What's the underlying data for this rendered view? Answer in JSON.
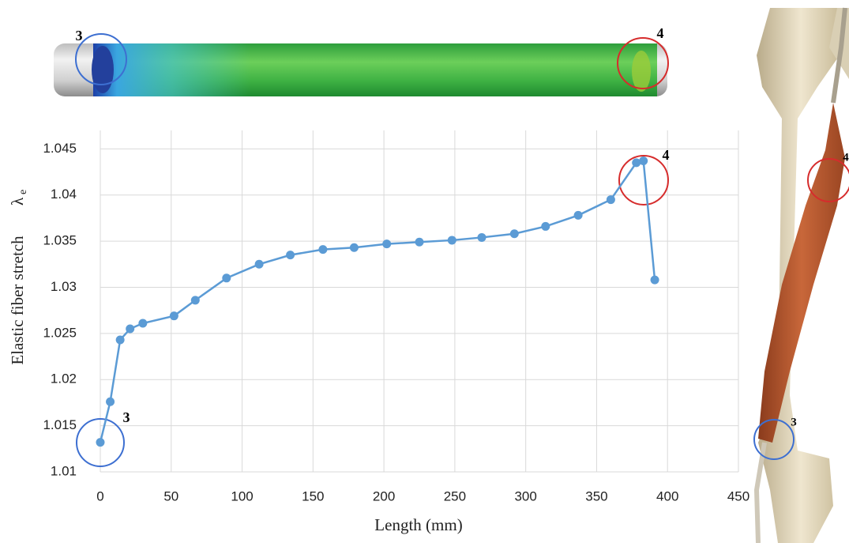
{
  "chart_data": {
    "type": "line",
    "xlabel": "Length (mm)",
    "ylabel": "Elastic fiber stretch",
    "ylabel_symbol": "λ",
    "ylabel_subscript": "e",
    "x": [
      0,
      7,
      14,
      21,
      30,
      52,
      67,
      89,
      112,
      134,
      157,
      179,
      202,
      225,
      248,
      269,
      292,
      314,
      337,
      360,
      378,
      383,
      391
    ],
    "series": [
      {
        "color": "#5b9bd5",
        "values": [
          1.0132,
          1.0176,
          1.0243,
          1.0255,
          1.0261,
          1.0269,
          1.0286,
          1.031,
          1.0325,
          1.0335,
          1.0341,
          1.0343,
          1.0347,
          1.0349,
          1.0351,
          1.0354,
          1.0358,
          1.0366,
          1.0378,
          1.0395,
          1.0435,
          1.0437,
          1.0308
        ]
      }
    ],
    "xlim": [
      0,
      450
    ],
    "xticks": [
      0,
      50,
      100,
      150,
      200,
      250,
      300,
      350,
      400,
      450
    ],
    "ylim": [
      1.01,
      1.047
    ],
    "yticks": [
      1.01,
      1.015,
      1.02,
      1.025,
      1.03,
      1.035,
      1.04,
      1.045
    ],
    "grid": true,
    "annotations": [
      "3",
      "4"
    ]
  },
  "tube_labels": [
    "3",
    "4"
  ],
  "anatomy_labels": [
    "3",
    "4"
  ]
}
